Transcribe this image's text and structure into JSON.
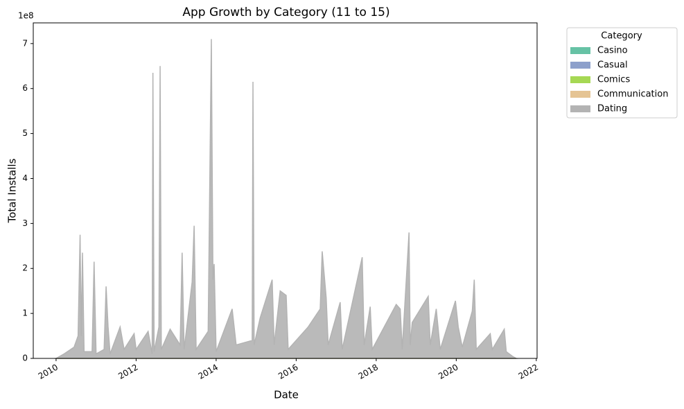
{
  "chart_data": {
    "type": "stacked_area",
    "title": "App Growth by Category (11 to 15)",
    "x_label": "Date",
    "y_label": "Total Installs",
    "y_offset_label": "1e8",
    "legend_title": "Category",
    "legend_loc": "upper right outside",
    "x": [
      2010.0,
      2010.2,
      2010.45,
      2010.55,
      2010.6,
      2010.63,
      2010.66,
      2010.7,
      2010.9,
      2010.95,
      2011.0,
      2011.2,
      2011.25,
      2011.3,
      2011.35,
      2011.6,
      2011.7,
      2011.95,
      2012.0,
      2012.3,
      2012.4,
      2012.42,
      2012.45,
      2012.57,
      2012.6,
      2012.63,
      2012.85,
      2013.1,
      2013.15,
      2013.2,
      2013.4,
      2013.45,
      2013.5,
      2013.8,
      2013.88,
      2013.92,
      2013.95,
      2014.0,
      2014.4,
      2014.5,
      2014.9,
      2014.92,
      2014.95,
      2015.1,
      2015.4,
      2015.45,
      2015.6,
      2015.75,
      2015.8,
      2016.3,
      2016.6,
      2016.65,
      2016.75,
      2016.8,
      2017.1,
      2017.15,
      2017.65,
      2017.7,
      2017.85,
      2017.9,
      2018.5,
      2018.6,
      2018.65,
      2018.82,
      2018.85,
      2018.9,
      2019.3,
      2019.35,
      2019.5,
      2019.6,
      2019.98,
      2020.05,
      2020.15,
      2020.4,
      2020.45,
      2020.5,
      2020.85,
      2020.9,
      2021.2,
      2021.25,
      2021.4,
      2021.5
    ],
    "series": [
      {
        "name": "Casino",
        "color": "#66c2a5",
        "values": [
          0,
          0,
          0,
          0,
          0,
          0,
          0,
          0,
          0,
          0,
          0,
          0,
          0,
          0,
          0,
          0,
          0,
          0,
          0,
          0,
          0,
          0,
          0,
          0,
          0,
          0,
          0,
          0,
          0,
          0,
          0,
          0,
          0,
          0,
          0,
          0,
          0,
          0,
          0,
          0,
          0,
          0,
          0,
          0,
          0,
          0,
          0,
          0,
          0,
          0,
          0,
          0,
          0,
          0,
          0,
          0,
          0,
          0,
          0,
          0,
          0,
          0,
          0,
          0,
          0,
          0,
          0,
          0,
          0,
          0,
          0,
          0,
          0,
          0,
          0,
          0,
          0,
          0,
          0,
          0,
          0,
          0
        ]
      },
      {
        "name": "Casual",
        "color": "#8da0cb",
        "values": [
          0,
          0,
          0,
          0,
          0,
          0,
          0,
          0,
          0,
          0,
          0,
          0,
          0,
          0,
          0,
          0,
          0,
          0,
          0,
          0,
          0,
          0,
          0,
          0,
          0,
          0,
          0,
          0,
          0,
          0,
          0,
          0,
          0,
          0,
          0,
          0,
          0,
          0,
          0,
          0,
          0,
          0,
          0,
          0,
          0,
          0,
          0,
          0,
          0,
          0,
          0,
          0,
          0,
          0,
          0,
          0,
          0,
          0,
          0,
          0,
          0,
          0,
          0,
          0,
          0,
          0,
          0,
          0,
          0,
          0,
          0,
          0,
          0,
          0,
          0,
          0,
          0,
          0,
          0,
          0,
          0,
          0
        ]
      },
      {
        "name": "Comics",
        "color": "#a6d854",
        "values": [
          0,
          0,
          0,
          0,
          0,
          0,
          0,
          0,
          0,
          0,
          0,
          0,
          0,
          0,
          0,
          0,
          0,
          0,
          0,
          0,
          0,
          0,
          0,
          0,
          0,
          0,
          0,
          0,
          0,
          0,
          0,
          0,
          0,
          0,
          0,
          0,
          0,
          0,
          0,
          0,
          0,
          0,
          0,
          0,
          0,
          0,
          0,
          0,
          0,
          0,
          0,
          0,
          0,
          0,
          0,
          0,
          0,
          0,
          0,
          0,
          0,
          0,
          0,
          0,
          0,
          0,
          0,
          0,
          0,
          0,
          0,
          0,
          0,
          0,
          0,
          0,
          0,
          0,
          0,
          0,
          0,
          0
        ]
      },
      {
        "name": "Communication",
        "color": "#e5c494",
        "values": [
          0,
          0,
          0,
          0,
          0,
          0,
          0,
          0,
          0,
          0,
          0,
          0,
          0,
          0,
          0,
          0,
          0,
          0,
          0,
          0,
          0,
          0,
          0,
          0,
          0,
          0,
          0,
          0,
          0,
          0,
          0,
          0,
          0,
          0,
          0,
          0,
          0,
          0,
          0,
          0,
          0,
          0,
          0,
          0,
          0,
          0,
          0,
          0,
          0,
          0,
          0,
          0,
          0,
          0,
          0,
          0,
          0,
          0,
          0,
          0,
          0,
          0,
          0,
          0,
          0,
          0,
          0,
          0,
          0,
          0,
          0,
          0,
          0,
          0,
          0,
          0,
          0,
          0,
          0,
          0,
          0,
          0
        ]
      },
      {
        "name": "Dating",
        "color": "#b3b3b3",
        "values": [
          0,
          0.1,
          0.25,
          0.5,
          2.75,
          0.5,
          2.35,
          0.15,
          0.15,
          2.15,
          0.1,
          0.2,
          1.6,
          0.7,
          0.1,
          0.7,
          0.2,
          0.55,
          0.2,
          0.6,
          0.1,
          6.35,
          0.15,
          0.7,
          6.5,
          0.2,
          0.65,
          0.3,
          2.35,
          0.2,
          1.7,
          2.95,
          0.2,
          0.6,
          7.1,
          1.75,
          2.1,
          0.15,
          1.1,
          0.3,
          0.4,
          6.15,
          0.3,
          0.9,
          1.75,
          0.3,
          1.5,
          1.4,
          0.2,
          0.7,
          1.1,
          2.38,
          1.35,
          0.3,
          1.25,
          0.2,
          2.25,
          0.3,
          1.15,
          0.2,
          1.2,
          1.1,
          0.2,
          2.8,
          0.3,
          0.8,
          1.38,
          0.3,
          1.1,
          0.2,
          1.28,
          0.7,
          0.25,
          1.05,
          1.75,
          0.2,
          0.55,
          0.2,
          0.65,
          0.15,
          0.05,
          0
        ]
      }
    ],
    "xlim": [
      2009.43,
      2022.02
    ],
    "xticks": [
      2010,
      2012,
      2014,
      2016,
      2018,
      2020,
      2022
    ],
    "ylim": [
      0,
      7.46
    ],
    "yticks": [
      0,
      1,
      2,
      3,
      4,
      5,
      6,
      7
    ]
  }
}
